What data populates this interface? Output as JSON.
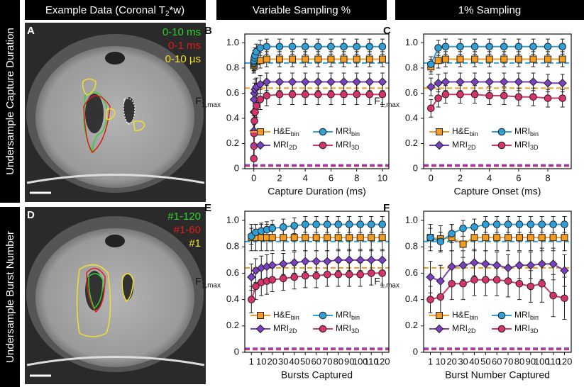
{
  "headers": {
    "example": [
      "Example Data (Coronal T",
      "2",
      "*w)"
    ],
    "variable": "Variable Sampling %",
    "one": "1% Sampling"
  },
  "rows": [
    "Undersample Capture Duration",
    "Undersample Burst Number"
  ],
  "images": [
    {
      "panel": "A",
      "labels": [
        {
          "text": "0-10 ms",
          "color": "#2fd12f"
        },
        {
          "text": "0-1 ms",
          "color": "#e01b1b"
        },
        {
          "text": "0-10 µs",
          "color": "#f2e02a"
        }
      ]
    },
    {
      "panel": "D",
      "labels": [
        {
          "text": "#1-120",
          "color": "#2fd12f"
        },
        {
          "text": "#1-60",
          "color": "#e01b1b"
        },
        {
          "text": "#1",
          "color": "#f2e02a"
        }
      ]
    }
  ],
  "chart_data": [
    {
      "type": "line",
      "panel": "B",
      "xlabel": "Capture Duration (ms)",
      "ylabel": "F",
      "ylabel_sub": "1,max",
      "x": [
        0,
        0.01,
        0.02,
        0.05,
        0.1,
        0.2,
        0.5,
        1,
        2,
        3,
        4,
        5,
        6,
        7,
        8,
        9,
        10
      ],
      "xlim": [
        -0.7,
        10.5
      ],
      "ylim": [
        0,
        1.07
      ],
      "xticks": [
        0,
        2,
        4,
        6,
        8,
        10
      ],
      "yticks": [
        0,
        0.2,
        0.4,
        0.6,
        0.8,
        {
          "value": 1,
          "label": "1.0"
        }
      ],
      "series": [
        {
          "name": "H&E",
          "sub": "bin",
          "color": "#f39c1f",
          "marker": "square",
          "baseline": 0.64,
          "values": [
            0.82,
            0.83,
            0.84,
            0.85,
            0.85,
            0.85,
            0.86,
            0.87,
            0.87,
            0.87,
            0.87,
            0.87,
            0.87,
            0.87,
            0.87,
            0.87,
            0.87
          ],
          "errors": [
            0.06,
            0.06,
            0.06,
            0.06,
            0.06,
            0.06,
            0.06,
            0.06,
            0.06,
            0.06,
            0.06,
            0.06,
            0.06,
            0.06,
            0.06,
            0.06,
            0.06
          ]
        },
        {
          "name": "MRI",
          "sub": "bin",
          "color": "#2f9fd8",
          "marker": "circle",
          "baseline": 0.84,
          "values": [
            0.84,
            0.85,
            0.86,
            0.88,
            0.9,
            0.93,
            0.96,
            0.97,
            0.97,
            0.97,
            0.97,
            0.97,
            0.97,
            0.97,
            0.97,
            0.97,
            0.97
          ],
          "errors": [
            0.06,
            0.06,
            0.06,
            0.06,
            0.06,
            0.06,
            0.06,
            0.06,
            0.06,
            0.06,
            0.06,
            0.06,
            0.06,
            0.06,
            0.06,
            0.06,
            0.06
          ]
        },
        {
          "name": "MRI",
          "sub": "2D",
          "color": "#7b3fc4",
          "marker": "diamond",
          "baseline": 0.03,
          "values": [
            0.3,
            0.45,
            0.55,
            0.6,
            0.63,
            0.65,
            0.67,
            0.69,
            0.69,
            0.69,
            0.69,
            0.69,
            0.69,
            0.69,
            0.69,
            0.69,
            0.69
          ],
          "errors": [
            0.12,
            0.1,
            0.09,
            0.08,
            0.08,
            0.07,
            0.07,
            0.07,
            0.07,
            0.07,
            0.07,
            0.07,
            0.07,
            0.07,
            0.07,
            0.07,
            0.07
          ]
        },
        {
          "name": "MRI",
          "sub": "3D",
          "color": "#d6336c",
          "marker": "circle",
          "baseline": 0.02,
          "values": [
            0.08,
            0.18,
            0.28,
            0.38,
            0.45,
            0.5,
            0.55,
            0.58,
            0.59,
            0.59,
            0.59,
            0.59,
            0.59,
            0.59,
            0.59,
            0.59,
            0.59
          ],
          "errors": [
            0.08,
            0.1,
            0.1,
            0.1,
            0.09,
            0.09,
            0.08,
            0.08,
            0.08,
            0.08,
            0.08,
            0.08,
            0.08,
            0.08,
            0.08,
            0.08,
            0.08
          ]
        }
      ]
    },
    {
      "type": "line",
      "panel": "C",
      "xlabel": "Capture Onset (ms)",
      "ylabel": "F",
      "ylabel_sub": "1,max",
      "x": [
        0,
        0.5,
        1,
        2,
        3,
        4,
        5,
        6,
        7,
        8,
        9
      ],
      "xlim": [
        -0.5,
        9.6
      ],
      "ylim": [
        0,
        1.07
      ],
      "xticks": [
        0,
        2,
        4,
        6,
        8
      ],
      "yticks": [
        0,
        0.2,
        0.4,
        0.6,
        0.8,
        {
          "value": 1,
          "label": "1.0"
        }
      ],
      "series": [
        {
          "name": "H&E",
          "sub": "bin",
          "color": "#f39c1f",
          "marker": "square",
          "baseline": 0.64,
          "values": [
            0.81,
            0.86,
            0.87,
            0.87,
            0.87,
            0.87,
            0.87,
            0.87,
            0.87,
            0.87,
            0.87
          ],
          "errors": [
            0.06,
            0.06,
            0.06,
            0.06,
            0.06,
            0.06,
            0.06,
            0.06,
            0.06,
            0.06,
            0.06
          ]
        },
        {
          "name": "MRI",
          "sub": "bin",
          "color": "#2f9fd8",
          "marker": "circle",
          "baseline": 0.84,
          "values": [
            0.83,
            0.96,
            0.97,
            0.97,
            0.97,
            0.97,
            0.97,
            0.97,
            0.97,
            0.97,
            0.97
          ],
          "errors": [
            0.06,
            0.06,
            0.06,
            0.06,
            0.06,
            0.06,
            0.06,
            0.06,
            0.06,
            0.06,
            0.06
          ]
        },
        {
          "name": "MRI",
          "sub": "2D",
          "color": "#7b3fc4",
          "marker": "diamond",
          "baseline": 0.03,
          "values": [
            0.65,
            0.68,
            0.69,
            0.69,
            0.69,
            0.69,
            0.69,
            0.69,
            0.69,
            0.68,
            0.68
          ],
          "errors": [
            0.07,
            0.07,
            0.07,
            0.07,
            0.07,
            0.07,
            0.07,
            0.07,
            0.07,
            0.07,
            0.07
          ]
        },
        {
          "name": "MRI",
          "sub": "3D",
          "color": "#d6336c",
          "marker": "circle",
          "baseline": 0.02,
          "values": [
            0.48,
            0.56,
            0.59,
            0.59,
            0.59,
            0.58,
            0.58,
            0.57,
            0.57,
            0.56,
            0.56
          ],
          "errors": [
            0.07,
            0.07,
            0.07,
            0.07,
            0.07,
            0.07,
            0.07,
            0.07,
            0.07,
            0.07,
            0.07
          ]
        }
      ]
    },
    {
      "type": "line",
      "panel": "E",
      "xlabel": "Bursts Captured",
      "ylabel": "F",
      "ylabel_sub": "1,max",
      "x": [
        1,
        5,
        10,
        15,
        20,
        30,
        40,
        50,
        60,
        70,
        80,
        90,
        100,
        110,
        120
      ],
      "xlim": [
        -5,
        126
      ],
      "ylim": [
        0,
        1.07
      ],
      "xticks": [
        1,
        10,
        20,
        30,
        40,
        50,
        60,
        70,
        80,
        90,
        100,
        110,
        120
      ],
      "yticks": [
        0,
        0.2,
        0.4,
        0.6,
        0.8,
        {
          "value": 1,
          "label": "1.0"
        }
      ],
      "series": [
        {
          "name": "H&E",
          "sub": "bin",
          "color": "#f39c1f",
          "marker": "square",
          "baseline": 0.64,
          "values": [
            0.87,
            0.87,
            0.87,
            0.87,
            0.87,
            0.87,
            0.87,
            0.87,
            0.87,
            0.87,
            0.87,
            0.87,
            0.87,
            0.87,
            0.87
          ],
          "errors": [
            0.1,
            0.1,
            0.1,
            0.1,
            0.1,
            0.1,
            0.1,
            0.1,
            0.1,
            0.1,
            0.1,
            0.1,
            0.1,
            0.1,
            0.1
          ]
        },
        {
          "name": "MRI",
          "sub": "bin",
          "color": "#2f9fd8",
          "marker": "circle",
          "baseline": 0.84,
          "values": [
            0.88,
            0.91,
            0.92,
            0.93,
            0.94,
            0.95,
            0.96,
            0.97,
            0.97,
            0.97,
            0.97,
            0.97,
            0.97,
            0.97,
            0.97
          ],
          "errors": [
            0.06,
            0.06,
            0.06,
            0.06,
            0.06,
            0.06,
            0.06,
            0.06,
            0.06,
            0.06,
            0.06,
            0.06,
            0.06,
            0.06,
            0.06
          ]
        },
        {
          "name": "MRI",
          "sub": "2D",
          "color": "#7b3fc4",
          "marker": "diamond",
          "baseline": 0.03,
          "values": [
            0.57,
            0.62,
            0.64,
            0.65,
            0.66,
            0.67,
            0.68,
            0.69,
            0.69,
            0.69,
            0.7,
            0.7,
            0.7,
            0.7,
            0.7
          ],
          "errors": [
            0.1,
            0.09,
            0.09,
            0.09,
            0.09,
            0.08,
            0.08,
            0.08,
            0.08,
            0.08,
            0.08,
            0.08,
            0.08,
            0.08,
            0.08
          ]
        },
        {
          "name": "MRI",
          "sub": "3D",
          "color": "#d6336c",
          "marker": "circle",
          "baseline": 0.02,
          "values": [
            0.4,
            0.5,
            0.53,
            0.54,
            0.55,
            0.56,
            0.57,
            0.58,
            0.58,
            0.59,
            0.59,
            0.59,
            0.59,
            0.6,
            0.6
          ],
          "errors": [
            0.1,
            0.1,
            0.1,
            0.1,
            0.09,
            0.09,
            0.09,
            0.09,
            0.09,
            0.09,
            0.09,
            0.09,
            0.09,
            0.09,
            0.09
          ]
        }
      ]
    },
    {
      "type": "line",
      "panel": "F",
      "xlabel": "Burst Number Captured",
      "ylabel": "F",
      "ylabel_sub": "1,max",
      "x": [
        1,
        10,
        20,
        30,
        40,
        50,
        60,
        70,
        80,
        90,
        100,
        110,
        120
      ],
      "xlim": [
        -5,
        126
      ],
      "ylim": [
        0,
        1.07
      ],
      "xticks": [
        1,
        10,
        20,
        30,
        40,
        50,
        60,
        70,
        80,
        90,
        100,
        110,
        120
      ],
      "yticks": [
        0,
        0.2,
        0.4,
        0.6,
        0.8,
        {
          "value": 1,
          "label": "1.0"
        }
      ],
      "series": [
        {
          "name": "H&E",
          "sub": "bin",
          "color": "#f39c1f",
          "marker": "square",
          "baseline": 0.64,
          "values": [
            0.87,
            0.86,
            0.87,
            0.82,
            0.87,
            0.87,
            0.87,
            0.87,
            0.87,
            0.87,
            0.87,
            0.87,
            0.87
          ],
          "errors": [
            0.1,
            0.1,
            0.1,
            0.1,
            0.1,
            0.1,
            0.1,
            0.1,
            0.1,
            0.1,
            0.1,
            0.1,
            0.1
          ]
        },
        {
          "name": "MRI",
          "sub": "bin",
          "color": "#2f9fd8",
          "marker": "circle",
          "baseline": 0.84,
          "values": [
            0.87,
            0.84,
            0.9,
            0.94,
            0.95,
            0.97,
            0.97,
            0.97,
            0.97,
            0.97,
            0.97,
            0.97,
            0.97
          ],
          "errors": [
            0.07,
            0.07,
            0.07,
            0.06,
            0.06,
            0.06,
            0.06,
            0.06,
            0.06,
            0.06,
            0.06,
            0.06,
            0.06
          ]
        },
        {
          "name": "MRI",
          "sub": "2D",
          "color": "#7b3fc4",
          "marker": "diamond",
          "baseline": 0.03,
          "values": [
            0.57,
            0.54,
            0.65,
            0.66,
            0.68,
            0.67,
            0.66,
            0.64,
            0.66,
            0.66,
            0.67,
            0.67,
            0.62
          ],
          "errors": [
            0.12,
            0.12,
            0.12,
            0.11,
            0.1,
            0.1,
            0.1,
            0.1,
            0.1,
            0.1,
            0.12,
            0.12,
            0.12
          ]
        },
        {
          "name": "MRI",
          "sub": "3D",
          "color": "#d6336c",
          "marker": "circle",
          "baseline": 0.02,
          "values": [
            0.4,
            0.42,
            0.52,
            0.52,
            0.55,
            0.55,
            0.55,
            0.54,
            0.52,
            0.5,
            0.52,
            0.43,
            0.41
          ],
          "errors": [
            0.1,
            0.12,
            0.12,
            0.12,
            0.12,
            0.12,
            0.12,
            0.12,
            0.12,
            0.12,
            0.14,
            0.16,
            0.16
          ]
        }
      ]
    }
  ]
}
